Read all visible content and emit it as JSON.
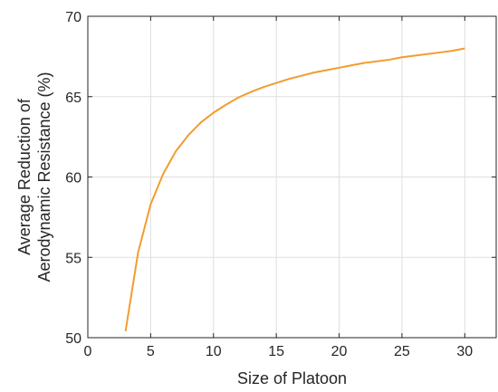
{
  "chart_data": {
    "type": "line",
    "xlabel": "Size of Platoon",
    "ylabel": [
      "Average Reduction of",
      "Aerodynamic Resistance (%)"
    ],
    "xlim": [
      0,
      32.5
    ],
    "ylim": [
      50,
      70
    ],
    "xticks": [
      0,
      5,
      10,
      15,
      20,
      25,
      30
    ],
    "yticks": [
      50,
      55,
      60,
      65,
      70
    ],
    "grid": true,
    "series": [
      {
        "color": "#f39c2e",
        "x": [
          3,
          4,
          5,
          6,
          7,
          8,
          9,
          10,
          11,
          12,
          13,
          14,
          15,
          16,
          17,
          18,
          19,
          20,
          21,
          22,
          23,
          24,
          25,
          26,
          27,
          28,
          29,
          30
        ],
        "y": [
          50.4,
          55.3,
          58.3,
          60.2,
          61.6,
          62.6,
          63.4,
          64.0,
          64.5,
          64.95,
          65.3,
          65.6,
          65.85,
          66.1,
          66.3,
          66.5,
          66.65,
          66.8,
          66.95,
          67.1,
          67.2,
          67.3,
          67.45,
          67.55,
          67.65,
          67.75,
          67.85,
          68.0
        ]
      }
    ]
  }
}
